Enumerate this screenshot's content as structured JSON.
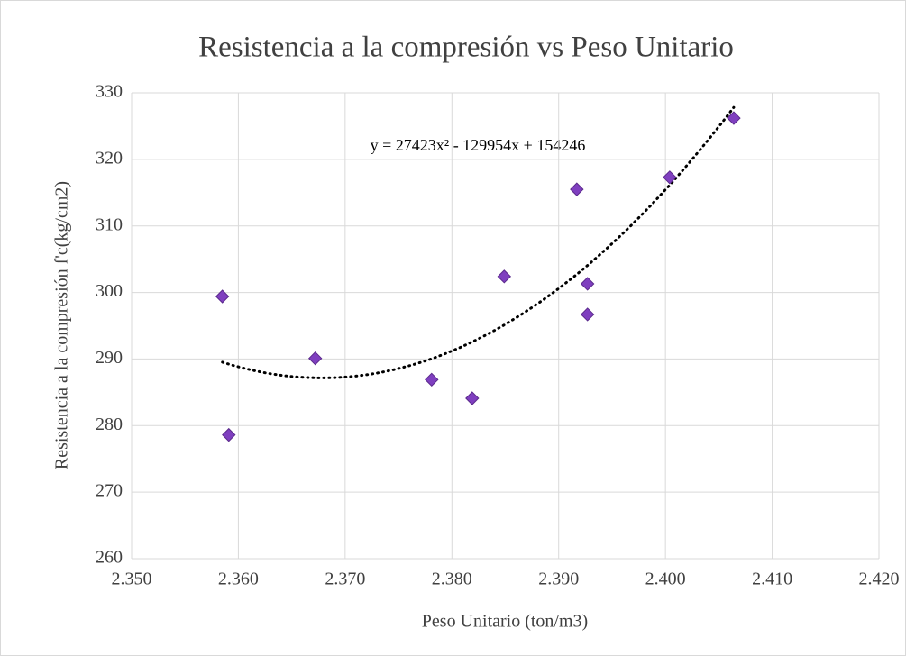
{
  "chart_data": {
    "type": "scatter",
    "title": "Resistencia a la compresión vs Peso Unitario",
    "xlabel": "Peso Unitario (ton/m3)",
    "ylabel": "Resistencia a la compresión f'c(kg/cm2)",
    "x": [
      2.3585,
      2.3591,
      2.3672,
      2.3781,
      2.3819,
      2.3849,
      2.3917,
      2.3927,
      2.3927,
      2.4004,
      2.4064
    ],
    "values": [
      299.4,
      278.6,
      290.1,
      286.9,
      284.1,
      302.4,
      315.5,
      301.3,
      296.7,
      317.3,
      326.2
    ],
    "color": "#7f3fbf",
    "xlim": [
      2.35,
      2.42
    ],
    "xticks": [
      {
        "value": 2.35,
        "label": "2.350"
      },
      {
        "value": 2.36,
        "label": "2.360"
      },
      {
        "value": 2.37,
        "label": "2.370"
      },
      {
        "value": 2.38,
        "label": "2.380"
      },
      {
        "value": 2.39,
        "label": "2.390"
      },
      {
        "value": 2.4,
        "label": "2.400"
      },
      {
        "value": 2.41,
        "label": "2.410"
      },
      {
        "value": 2.42,
        "label": "2.420"
      }
    ],
    "ylim": [
      260,
      330
    ],
    "yticks": [
      260,
      270,
      280,
      290,
      300,
      310,
      320,
      330
    ],
    "grid": true,
    "trendline": {
      "type": "polynomial",
      "order": 2,
      "equation": "y = 27423x² - 129954x + 154246"
    }
  }
}
